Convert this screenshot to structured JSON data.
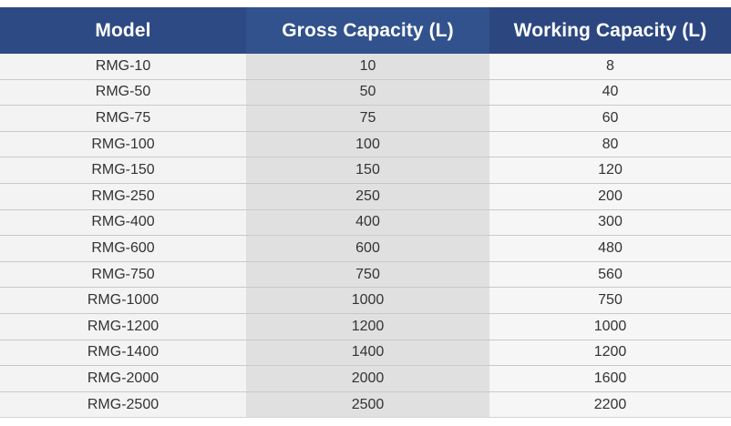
{
  "table": {
    "headers": {
      "model": "Model",
      "gross": "Gross Capacity (L)",
      "working": "Working Capacity (L)"
    },
    "rows": [
      {
        "model": "RMG-10",
        "gross": "10",
        "working": "8"
      },
      {
        "model": "RMG-50",
        "gross": "50",
        "working": "40"
      },
      {
        "model": "RMG-75",
        "gross": "75",
        "working": "60"
      },
      {
        "model": "RMG-100",
        "gross": "100",
        "working": "80"
      },
      {
        "model": "RMG-150",
        "gross": "150",
        "working": "120"
      },
      {
        "model": "RMG-250",
        "gross": "250",
        "working": "200"
      },
      {
        "model": "RMG-400",
        "gross": "400",
        "working": "300"
      },
      {
        "model": "RMG-600",
        "gross": "600",
        "working": "480"
      },
      {
        "model": "RMG-750",
        "gross": "750",
        "working": "560"
      },
      {
        "model": "RMG-1000",
        "gross": "1000",
        "working": "750"
      },
      {
        "model": "RMG-1200",
        "gross": "1200",
        "working": "1000"
      },
      {
        "model": "RMG-1400",
        "gross": "1400",
        "working": "1200"
      },
      {
        "model": "RMG-2000",
        "gross": "2000",
        "working": "1600"
      },
      {
        "model": "RMG-2500",
        "gross": "2500",
        "working": "2200"
      }
    ]
  },
  "colors": {
    "header_background": "#2f4b85",
    "header_text": "#ffffff",
    "model_column_background": "#f3f3f3",
    "gross_column_background": "#e0e0e0",
    "working_column_background": "#f6f6f6",
    "row_divider": "#c9c9c9"
  }
}
